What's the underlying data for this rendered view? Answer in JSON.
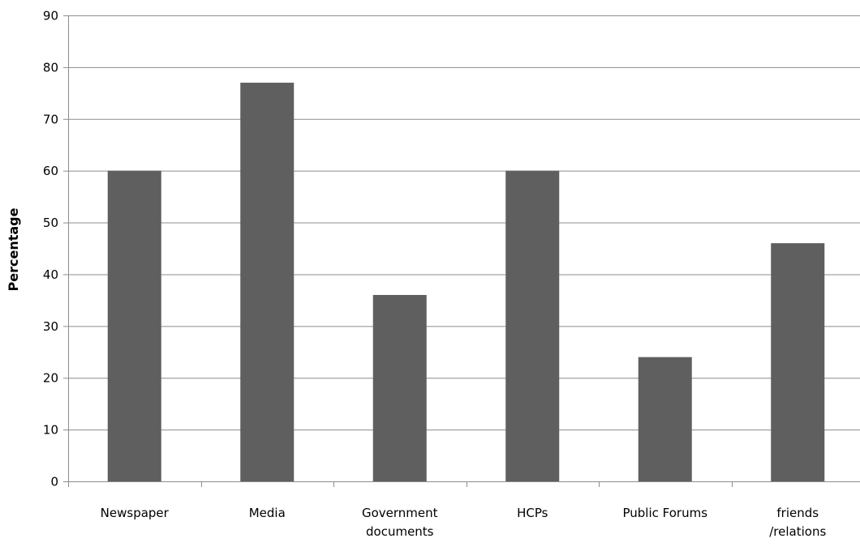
{
  "chart_data": {
    "type": "bar",
    "categories": [
      [
        "Newspaper"
      ],
      [
        "Media"
      ],
      [
        "Government",
        "documents"
      ],
      [
        "HCPs"
      ],
      [
        "Public Forums"
      ],
      [
        "friends",
        "/relations"
      ]
    ],
    "values": [
      60,
      77,
      36,
      60,
      24,
      46
    ],
    "ylabel": "Percentage",
    "ylim": [
      0,
      90
    ],
    "yticks": [
      0,
      10,
      20,
      30,
      40,
      50,
      60,
      70,
      80,
      90
    ],
    "grid": true,
    "bar_color": "#5f5f5f",
    "grid_color": "#8c8c8c"
  }
}
